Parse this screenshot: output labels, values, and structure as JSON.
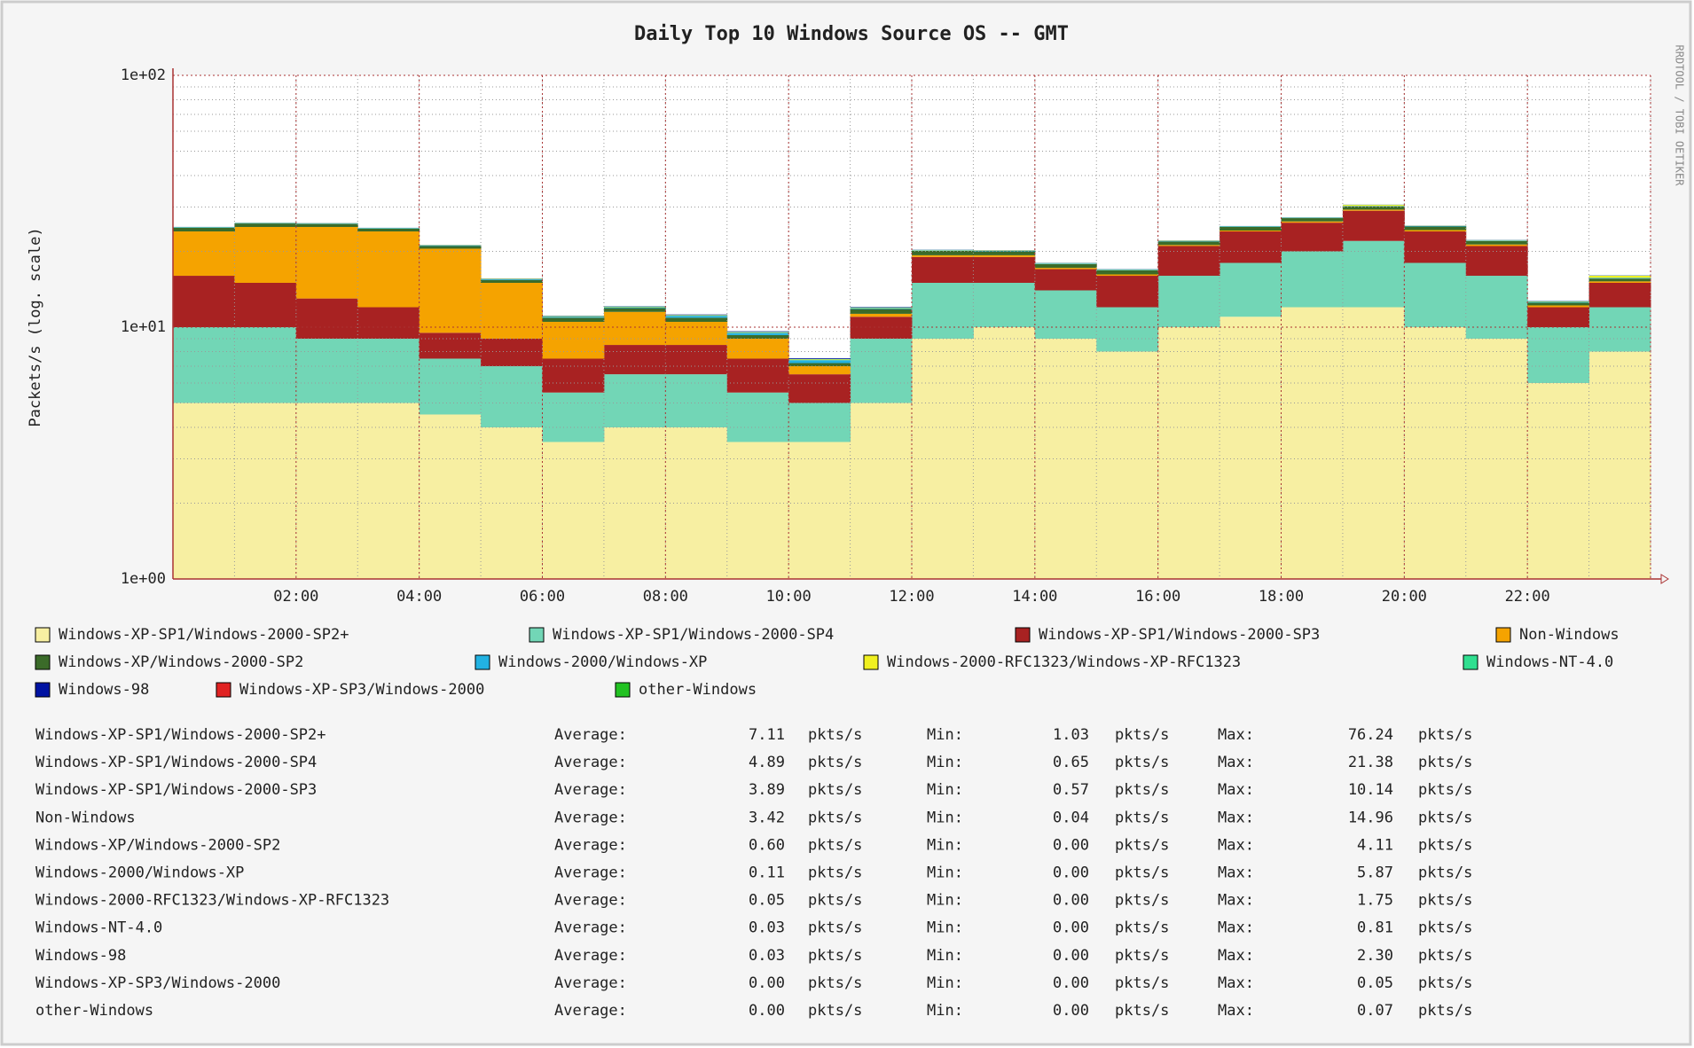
{
  "chart_data": {
    "type": "stacked-bar",
    "title": "Daily Top 10 Windows Source OS -- GMT",
    "y_label": "Packets/s (log. scale)",
    "side_text": "RRDTOOL / TOBI OETIKER",
    "log_scale": true,
    "grid": true,
    "xlim": [
      0,
      24
    ],
    "xticks": [
      {
        "value": 2,
        "label": "02:00"
      },
      {
        "value": 4,
        "label": "04:00"
      },
      {
        "value": 6,
        "label": "06:00"
      },
      {
        "value": 8,
        "label": "08:00"
      },
      {
        "value": 10,
        "label": "10:00"
      },
      {
        "value": 12,
        "label": "12:00"
      },
      {
        "value": 14,
        "label": "14:00"
      },
      {
        "value": 16,
        "label": "16:00"
      },
      {
        "value": 18,
        "label": "18:00"
      },
      {
        "value": 20,
        "label": "20:00"
      },
      {
        "value": 22,
        "label": "22:00"
      }
    ],
    "ylim": [
      1,
      100
    ],
    "yticks": [
      {
        "value": 1,
        "label": "1e+00"
      },
      {
        "value": 10,
        "label": "1e+01"
      },
      {
        "value": 100,
        "label": "1e+02"
      }
    ],
    "x": [
      0,
      1,
      2,
      3,
      4,
      5,
      6,
      7,
      8,
      9,
      10,
      11,
      12,
      13,
      14,
      15,
      16,
      17,
      18,
      19,
      20,
      21,
      22,
      23
    ],
    "series": [
      {
        "name": "Windows-XP-SP1/Windows-2000-SP2+",
        "color": "#f7efa2",
        "values": [
          5,
          5,
          5,
          5,
          4.5,
          4,
          3.5,
          4,
          4,
          3.5,
          3.5,
          5,
          9,
          10,
          9,
          8,
          10,
          11,
          12,
          12,
          10,
          9,
          6,
          8
        ]
      },
      {
        "name": "Windows-XP-SP1/Windows-2000-SP4",
        "color": "#72d6b6",
        "values": [
          5,
          5,
          4,
          4,
          3,
          3,
          2,
          2.5,
          2.5,
          2,
          1.5,
          4,
          6,
          5,
          5,
          4,
          6,
          7,
          8,
          10,
          8,
          7,
          4,
          4
        ]
      },
      {
        "name": "Windows-XP-SP1/Windows-2000-SP3",
        "color": "#a82222",
        "values": [
          6,
          5,
          4,
          3,
          2,
          2,
          2,
          2,
          2,
          2,
          1.5,
          2,
          4,
          4,
          3,
          4,
          5,
          6,
          6,
          7,
          6,
          5,
          2,
          3
        ]
      },
      {
        "name": "Non-Windows",
        "color": "#f5a300",
        "values": [
          8,
          10,
          12,
          12,
          11,
          6,
          3,
          3,
          2,
          1.5,
          0.5,
          0.3,
          0.3,
          0.3,
          0.2,
          0.2,
          0.2,
          0.2,
          0.3,
          0.3,
          0.3,
          0.3,
          0.2,
          0.2
        ]
      },
      {
        "name": "Windows-XP/Windows-2000-SP2",
        "color": "#3b6b29",
        "values": [
          0.8,
          0.8,
          0.7,
          0.6,
          0.5,
          0.4,
          0.4,
          0.4,
          0.4,
          0.3,
          0.2,
          0.5,
          0.8,
          0.7,
          0.6,
          0.6,
          0.7,
          0.8,
          0.8,
          0.9,
          0.8,
          0.7,
          0.3,
          0.4
        ]
      },
      {
        "name": "Windows-2000/Windows-XP",
        "color": "#22b2e2",
        "values": [
          0.1,
          0.1,
          0.1,
          0.1,
          0.1,
          0.1,
          0.1,
          0.1,
          0.2,
          0.2,
          0.2,
          0.1,
          0.1,
          0.1,
          0.1,
          0.1,
          0.1,
          0.1,
          0.1,
          0.1,
          0.1,
          0.1,
          0.1,
          0.1
        ]
      },
      {
        "name": "Windows-2000-RFC1323/Windows-XP-RFC1323",
        "color": "#f0f020",
        "values": [
          0.05,
          0.05,
          0.05,
          0.05,
          0.05,
          0.05,
          0.05,
          0.05,
          0.05,
          0.05,
          0.05,
          0.05,
          0.05,
          0.05,
          0.05,
          0.05,
          0.05,
          0.05,
          0.05,
          0.3,
          0.05,
          0.05,
          0.05,
          0.3
        ]
      },
      {
        "name": "Windows-NT-4.0",
        "color": "#30df90",
        "values": [
          0.03,
          0.03,
          0.03,
          0.03,
          0.03,
          0.03,
          0.03,
          0.03,
          0.03,
          0.03,
          0.03,
          0.03,
          0.03,
          0.03,
          0.03,
          0.03,
          0.03,
          0.03,
          0.03,
          0.03,
          0.03,
          0.03,
          0.03,
          0.03
        ]
      },
      {
        "name": "Windows-98",
        "color": "#0012a2",
        "values": [
          0.03,
          0.03,
          0.03,
          0.03,
          0.03,
          0.03,
          0.03,
          0.03,
          0.05,
          0.05,
          0.05,
          0.05,
          0.03,
          0.03,
          0.03,
          0.03,
          0.03,
          0.03,
          0.03,
          0.03,
          0.03,
          0.03,
          0.03,
          0.03
        ]
      },
      {
        "name": "Windows-XP-SP3/Windows-2000",
        "color": "#e02222",
        "values": [
          0,
          0,
          0,
          0,
          0,
          0,
          0,
          0,
          0,
          0,
          0,
          0,
          0,
          0,
          0,
          0,
          0,
          0,
          0,
          0,
          0,
          0,
          0,
          0
        ]
      },
      {
        "name": "other-Windows",
        "color": "#22c222",
        "values": [
          0,
          0,
          0,
          0,
          0,
          0,
          0,
          0,
          0,
          0,
          0,
          0,
          0,
          0,
          0,
          0,
          0,
          0,
          0,
          0,
          0,
          0,
          0,
          0
        ]
      }
    ]
  },
  "stats": {
    "average": "Average:",
    "min": "Min:",
    "max": "Max:",
    "unit": "pkts/s",
    "rows": [
      [
        "7.11",
        "1.03",
        "76.24"
      ],
      [
        "4.89",
        "0.65",
        "21.38"
      ],
      [
        "3.89",
        "0.57",
        "10.14"
      ],
      [
        "3.42",
        "0.04",
        "14.96"
      ],
      [
        "0.60",
        "0.00",
        "4.11"
      ],
      [
        "0.11",
        "0.00",
        "5.87"
      ],
      [
        "0.05",
        "0.00",
        "1.75"
      ],
      [
        "0.03",
        "0.00",
        "0.81"
      ],
      [
        "0.03",
        "0.00",
        "2.30"
      ],
      [
        "0.00",
        "0.00",
        "0.05"
      ],
      [
        "0.00",
        "0.00",
        "0.07"
      ]
    ]
  }
}
